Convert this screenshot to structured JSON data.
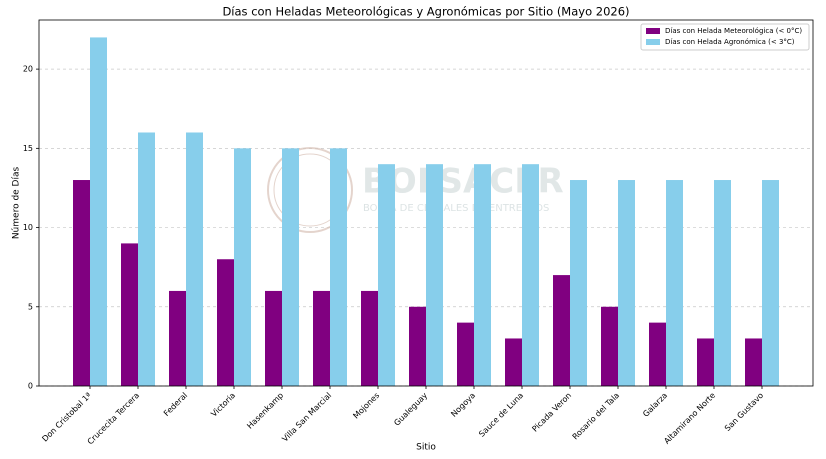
{
  "chart_data": {
    "type": "bar",
    "title": "Días con Heladas Meteorológicas y Agronómicas por Sitio (Mayo 2026)",
    "x_label": "Sitio",
    "y_label": "Número de Días",
    "watermark": "BOLSACER",
    "watermark_subtitle": "BOLSA DE CEREALES DE ENTRE RIOS",
    "categories": [
      "Don Cristobal 1ª",
      "Crucecita Tercera",
      "Federal",
      "Victoria",
      "Hasenkamp",
      "Villa San Marcial",
      "Mojones",
      "Gualeguay",
      "Nogoya",
      "Sauce de Luna",
      "Picada Veron",
      "Rosario del Tala",
      "Galarza",
      "Altamirano Norte",
      "San Gustavo"
    ],
    "series": [
      {
        "name": "Días con Helada Meteorológica (< 0°C)",
        "color": "#800080",
        "values": [
          13,
          9,
          6,
          8,
          6,
          6,
          6,
          5,
          4,
          3,
          7,
          5,
          4,
          3,
          3
        ]
      },
      {
        "name": "Días con Helada Agronómica (< 3°C)",
        "color": "#87ceeb",
        "values": [
          22,
          16,
          16,
          15,
          15,
          15,
          14,
          14,
          14,
          14,
          13,
          13,
          13,
          13,
          13
        ]
      }
    ],
    "ylim": [
      0,
      23.1
    ],
    "yticks": [
      0,
      5,
      10,
      15,
      20
    ],
    "grid": true,
    "legend": "upper right"
  }
}
